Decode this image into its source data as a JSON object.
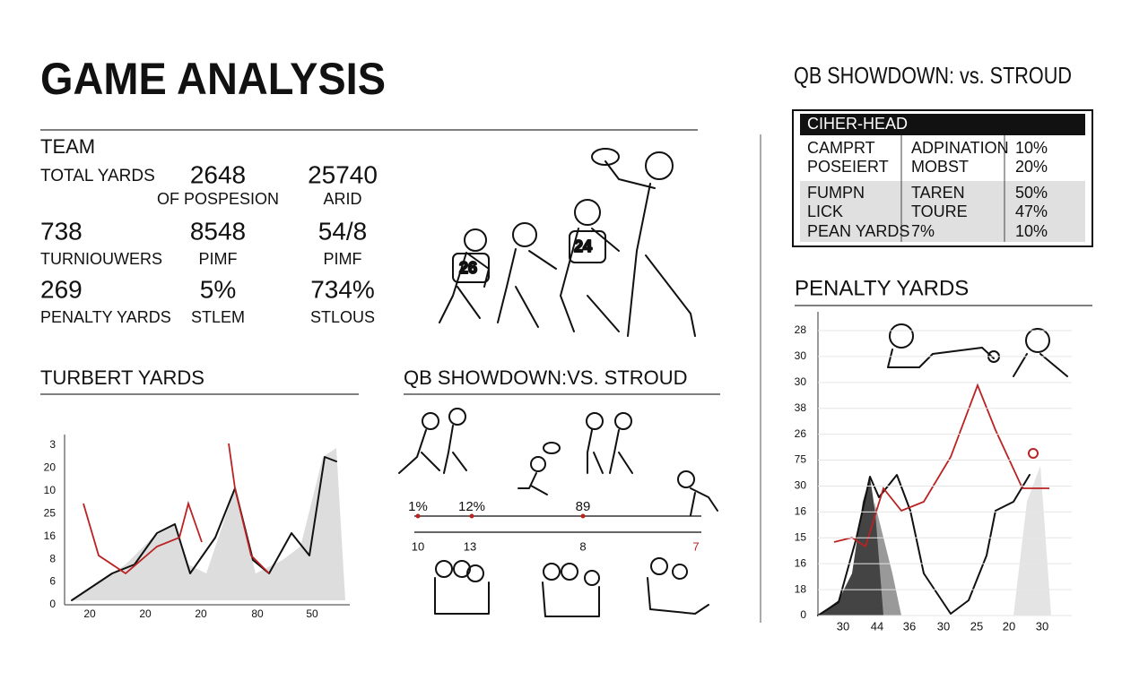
{
  "header": {
    "title": "GAME ANALYSIS"
  },
  "team_stats": {
    "title": "TEAM",
    "rows": [
      [
        {
          "value": "",
          "label": "TOTAL YARDS"
        },
        {
          "value": "2648",
          "label": "OF POSPESION"
        },
        {
          "value": "25740",
          "label": "ARID"
        }
      ],
      [
        {
          "value": "738",
          "label": "TURNIOUWERS"
        },
        {
          "value": "8548",
          "label": "PIMF"
        },
        {
          "value": "54/8",
          "label": "PIMF"
        }
      ],
      [
        {
          "value": "269",
          "label": "PENALTY YARDS"
        },
        {
          "value": "5%",
          "label": "STLEM"
        },
        {
          "value": "734%",
          "label": "STLOUS"
        }
      ]
    ]
  },
  "left_chart": {
    "title": "TURBERT YARDS",
    "y_labels": [
      "3",
      "20",
      "10",
      "25",
      "16",
      "8",
      "6",
      "0"
    ],
    "x_labels": [
      "20",
      "20",
      "20",
      "80",
      "50"
    ]
  },
  "middle_panel": {
    "title": "QB SHOWDOWN:VS. STROUD",
    "timeline_top": [
      "1%",
      "12%",
      "89"
    ],
    "timeline_bottom": [
      "10",
      "13",
      "8",
      "7"
    ]
  },
  "qb_table": {
    "title": "QB SHOWDOWN: vs. STROUD",
    "header": "CIHER-HEAD",
    "rows": [
      [
        "CAMPRT",
        "ADPINATION",
        "10%"
      ],
      [
        "POSEIERT",
        "MOBST",
        "20%"
      ],
      [
        "FUMPN",
        "TAREN",
        "50%"
      ],
      [
        "LICK",
        "TOURE",
        "47%"
      ],
      [
        "PEAN YARDS",
        "7%",
        "10%"
      ]
    ]
  },
  "right_chart": {
    "title": "PENALTY YARDS",
    "y_labels": [
      "28",
      "30",
      "30",
      "38",
      "26",
      "75",
      "30",
      "16",
      "15",
      "16",
      "18",
      "0"
    ],
    "x_labels": [
      "30",
      "44",
      "36",
      "30",
      "25",
      "20",
      "30"
    ]
  }
}
